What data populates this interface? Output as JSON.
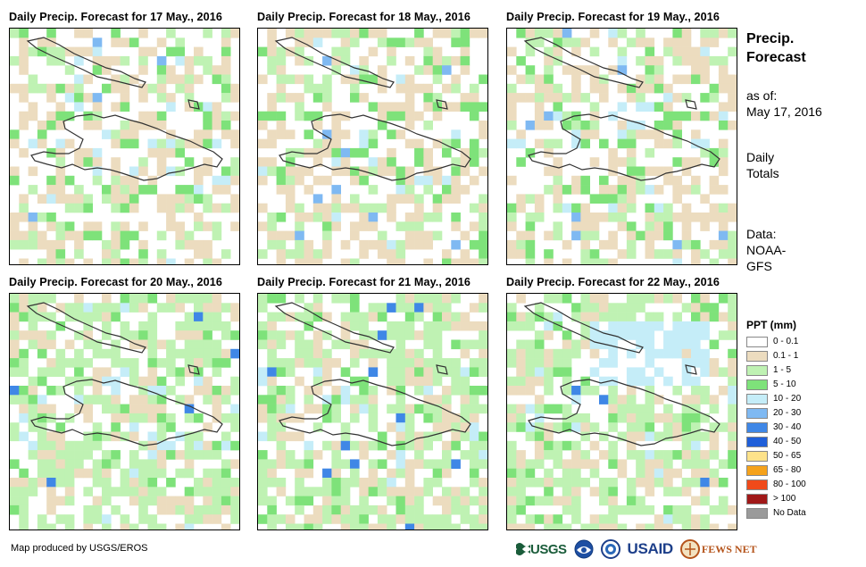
{
  "panels": [
    {
      "title": "Daily Precip. Forecast for 17 May., 2016"
    },
    {
      "title": "Daily Precip. Forecast for 18 May., 2016"
    },
    {
      "title": "Daily Precip. Forecast for 19 May., 2016"
    },
    {
      "title": "Daily Precip. Forecast for 20 May., 2016"
    },
    {
      "title": "Daily Precip. Forecast for 21 May., 2016"
    },
    {
      "title": "Daily Precip. Forecast for 22 May., 2016"
    }
  ],
  "sidebar": {
    "title_line1": "Precip.",
    "title_line2": "Forecast",
    "asof_label": "as of:",
    "asof_date": "May 17, 2016",
    "totals_line1": "Daily",
    "totals_line2": "Totals",
    "data_line1": "Data:",
    "data_line2": "NOAA-",
    "data_line3": "GFS"
  },
  "legend": {
    "title": "PPT (mm)",
    "items": [
      {
        "label": "0 - 0.1",
        "color": "#ffffff"
      },
      {
        "label": "0.1 - 1",
        "color": "#ecdcbf"
      },
      {
        "label": "1 - 5",
        "color": "#bff2b3"
      },
      {
        "label": "5 - 10",
        "color": "#7ee27a"
      },
      {
        "label": "10 - 20",
        "color": "#c5edf8"
      },
      {
        "label": "20 - 30",
        "color": "#7fb9f2"
      },
      {
        "label": "30 - 40",
        "color": "#3f87e6"
      },
      {
        "label": "40 - 50",
        "color": "#1f5fd9"
      },
      {
        "label": "50 - 65",
        "color": "#fde28a"
      },
      {
        "label": "65 - 80",
        "color": "#f5a21b"
      },
      {
        "label": "80 - 100",
        "color": "#f04a1a"
      },
      {
        "label": "> 100",
        "color": "#a01818"
      },
      {
        "label": "No Data",
        "color": "#9a9a9a"
      }
    ]
  },
  "footer": {
    "credit": "Map produced by USGS/EROS"
  },
  "logos": {
    "usgs": "USGS",
    "usaid": "USAID",
    "fewsnet": "FEWS NET"
  }
}
